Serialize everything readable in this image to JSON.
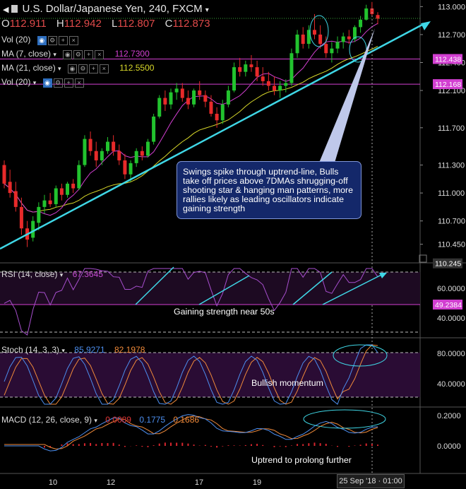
{
  "header": {
    "title": "U.S. Dollar/Japanese Yen, 240, FXCM",
    "ohlc": [
      {
        "key": "O",
        "value": "112.911"
      },
      {
        "key": "H",
        "value": "112.942"
      },
      {
        "key": "L",
        "value": "112.807"
      },
      {
        "key": "C",
        "value": "112.873"
      }
    ]
  },
  "indicators": {
    "vol1": "Vol (20)",
    "ma7": "MA (7, close)",
    "ma7_value": "112.7300",
    "ma21": "MA (21, close)",
    "ma21_value": "112.5500",
    "vol2": "Vol (20)"
  },
  "rsi_label": {
    "name": "RSI (14, close)",
    "value": "67.3645"
  },
  "stoch_label": {
    "name": "Stoch (14, 3, 3)",
    "k": "85.9271",
    "d": "82.1978"
  },
  "macd_label": {
    "name": "MACD (12, 26, close, 9)",
    "v1": "0.0089",
    "v2": "0.1775",
    "v3": "0.1686"
  },
  "annotations": {
    "callout": "Swings spike through uptrend-line, Bulls take off prices above 7DMAs shrugging-off shooting star & hanging man patterns, more rallies likely as leading oscillators indicate gaining strength",
    "rsi_note": "Gaining strength near 50s",
    "stoch_note": "Bullish momentum",
    "macd_note": "Uptrend to prolong further"
  },
  "crosshair_date": "25 Sep '18 · 01:00",
  "colors": {
    "bull": "#22c32e",
    "bear": "#e82a2a",
    "ma7": "#d23fd1",
    "ma21": "#d9d92a",
    "trendline": "#3fd7e6",
    "rsi": "#a84fcf",
    "stoch_k": "#4d8ff0",
    "stoch_d": "#f08a3a",
    "macd": "#4d8ff0",
    "signal": "#f08a3a",
    "hist": "#d8262e"
  },
  "chart_data": {
    "type": "candlestick",
    "x_ticks": [
      "10",
      "12",
      "17",
      "19"
    ],
    "price_axis": [
      "113.000",
      "112.700",
      "112.400",
      "112.100",
      "111.700",
      "111.300",
      "111.000",
      "110.700",
      "110.450"
    ],
    "price_tags": [
      "112.438",
      "112.168",
      "110.245"
    ],
    "rsi_axis": [
      "60.0000",
      "49.2384",
      "40.0000"
    ],
    "stoch_axis": [
      "80.0000",
      "40.0000"
    ],
    "macd_axis": [
      "0.2000",
      "0.0000"
    ],
    "candles": [
      {
        "o": 111.3,
        "h": 111.35,
        "l": 111.05,
        "c": 111.1
      },
      {
        "o": 111.12,
        "h": 111.25,
        "l": 110.95,
        "c": 111.0
      },
      {
        "o": 111.02,
        "h": 111.12,
        "l": 110.8,
        "c": 110.85
      },
      {
        "o": 110.85,
        "h": 110.95,
        "l": 110.55,
        "c": 110.62
      },
      {
        "o": 110.62,
        "h": 110.7,
        "l": 110.42,
        "c": 110.5
      },
      {
        "o": 110.52,
        "h": 110.75,
        "l": 110.48,
        "c": 110.7
      },
      {
        "o": 110.68,
        "h": 110.9,
        "l": 110.6,
        "c": 110.85
      },
      {
        "o": 110.85,
        "h": 110.98,
        "l": 110.78,
        "c": 110.92
      },
      {
        "o": 110.92,
        "h": 111.0,
        "l": 110.85,
        "c": 110.88
      },
      {
        "o": 110.88,
        "h": 111.08,
        "l": 110.85,
        "c": 111.05
      },
      {
        "o": 111.05,
        "h": 111.1,
        "l": 110.92,
        "c": 110.98
      },
      {
        "o": 110.98,
        "h": 111.12,
        "l": 110.95,
        "c": 111.1
      },
      {
        "o": 111.1,
        "h": 111.15,
        "l": 111.0,
        "c": 111.05
      },
      {
        "o": 111.05,
        "h": 111.35,
        "l": 111.03,
        "c": 111.3
      },
      {
        "o": 111.3,
        "h": 111.62,
        "l": 111.28,
        "c": 111.58
      },
      {
        "o": 111.58,
        "h": 111.66,
        "l": 111.4,
        "c": 111.45
      },
      {
        "o": 111.45,
        "h": 111.55,
        "l": 111.28,
        "c": 111.35
      },
      {
        "o": 111.35,
        "h": 111.48,
        "l": 111.3,
        "c": 111.45
      },
      {
        "o": 111.45,
        "h": 111.6,
        "l": 111.42,
        "c": 111.55
      },
      {
        "o": 111.55,
        "h": 111.62,
        "l": 111.4,
        "c": 111.45
      },
      {
        "o": 111.45,
        "h": 111.52,
        "l": 111.3,
        "c": 111.35
      },
      {
        "o": 111.35,
        "h": 111.42,
        "l": 111.15,
        "c": 111.2
      },
      {
        "o": 111.2,
        "h": 111.35,
        "l": 111.12,
        "c": 111.32
      },
      {
        "o": 111.32,
        "h": 111.48,
        "l": 111.28,
        "c": 111.45
      },
      {
        "o": 111.45,
        "h": 111.5,
        "l": 111.35,
        "c": 111.4
      },
      {
        "o": 111.4,
        "h": 111.58,
        "l": 111.38,
        "c": 111.55
      },
      {
        "o": 111.55,
        "h": 111.85,
        "l": 111.52,
        "c": 111.82
      },
      {
        "o": 111.82,
        "h": 112.05,
        "l": 111.8,
        "c": 112.02
      },
      {
        "o": 112.02,
        "h": 112.1,
        "l": 111.88,
        "c": 111.95
      },
      {
        "o": 111.95,
        "h": 112.12,
        "l": 111.9,
        "c": 112.08
      },
      {
        "o": 112.08,
        "h": 112.18,
        "l": 112.0,
        "c": 112.12
      },
      {
        "o": 112.12,
        "h": 112.18,
        "l": 111.98,
        "c": 112.02
      },
      {
        "o": 112.02,
        "h": 112.1,
        "l": 111.9,
        "c": 111.95
      },
      {
        "o": 111.95,
        "h": 112.12,
        "l": 111.92,
        "c": 112.1
      },
      {
        "o": 112.1,
        "h": 112.2,
        "l": 112.0,
        "c": 112.05
      },
      {
        "o": 112.05,
        "h": 112.1,
        "l": 111.92,
        "c": 111.98
      },
      {
        "o": 111.98,
        "h": 112.05,
        "l": 111.82,
        "c": 111.85
      },
      {
        "o": 111.85,
        "h": 111.92,
        "l": 111.7,
        "c": 111.78
      },
      {
        "o": 111.78,
        "h": 112.0,
        "l": 111.74,
        "c": 111.95
      },
      {
        "o": 111.95,
        "h": 112.15,
        "l": 111.92,
        "c": 112.1
      },
      {
        "o": 112.1,
        "h": 112.4,
        "l": 112.08,
        "c": 112.35
      },
      {
        "o": 112.35,
        "h": 112.45,
        "l": 112.25,
        "c": 112.3
      },
      {
        "o": 112.3,
        "h": 112.42,
        "l": 112.25,
        "c": 112.38
      },
      {
        "o": 112.38,
        "h": 112.48,
        "l": 112.3,
        "c": 112.35
      },
      {
        "o": 112.35,
        "h": 112.42,
        "l": 112.2,
        "c": 112.25
      },
      {
        "o": 112.25,
        "h": 112.35,
        "l": 112.15,
        "c": 112.2
      },
      {
        "o": 112.2,
        "h": 112.3,
        "l": 112.1,
        "c": 112.15
      },
      {
        "o": 112.15,
        "h": 112.25,
        "l": 112.05,
        "c": 112.1
      },
      {
        "o": 112.1,
        "h": 112.2,
        "l": 112.02,
        "c": 112.15
      },
      {
        "o": 112.15,
        "h": 112.22,
        "l": 112.08,
        "c": 112.18
      },
      {
        "o": 112.18,
        "h": 112.55,
        "l": 112.15,
        "c": 112.5
      },
      {
        "o": 112.5,
        "h": 112.75,
        "l": 112.45,
        "c": 112.7
      },
      {
        "o": 112.7,
        "h": 112.78,
        "l": 112.55,
        "c": 112.6
      },
      {
        "o": 112.6,
        "h": 112.8,
        "l": 112.55,
        "c": 112.75
      },
      {
        "o": 112.75,
        "h": 112.92,
        "l": 112.65,
        "c": 112.7
      },
      {
        "o": 112.7,
        "h": 112.8,
        "l": 112.55,
        "c": 112.6
      },
      {
        "o": 112.6,
        "h": 112.68,
        "l": 112.45,
        "c": 112.5
      },
      {
        "o": 112.5,
        "h": 112.62,
        "l": 112.4,
        "c": 112.55
      },
      {
        "o": 112.55,
        "h": 112.68,
        "l": 112.5,
        "c": 112.62
      },
      {
        "o": 112.62,
        "h": 112.72,
        "l": 112.55,
        "c": 112.68
      },
      {
        "o": 112.68,
        "h": 112.75,
        "l": 112.6,
        "c": 112.65
      },
      {
        "o": 112.65,
        "h": 112.8,
        "l": 112.62,
        "c": 112.78
      },
      {
        "o": 112.78,
        "h": 112.9,
        "l": 112.72,
        "c": 112.86
      },
      {
        "o": 112.86,
        "h": 113.02,
        "l": 112.85,
        "c": 112.98
      },
      {
        "o": 112.98,
        "h": 113.05,
        "l": 112.9,
        "c": 112.92
      },
      {
        "o": 112.91,
        "h": 112.94,
        "l": 112.81,
        "c": 112.87
      }
    ]
  }
}
